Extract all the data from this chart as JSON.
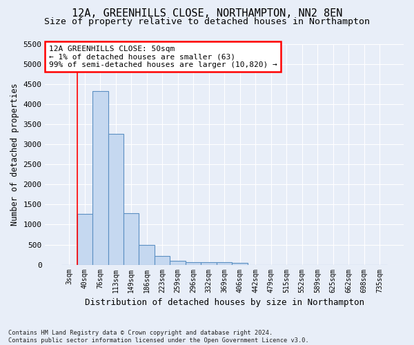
{
  "title_line1": "12A, GREENHILLS CLOSE, NORTHAMPTON, NN2 8EN",
  "title_line2": "Size of property relative to detached houses in Northampton",
  "xlabel": "Distribution of detached houses by size in Northampton",
  "ylabel": "Number of detached properties",
  "categories": [
    "3sqm",
    "40sqm",
    "76sqm",
    "113sqm",
    "149sqm",
    "186sqm",
    "223sqm",
    "259sqm",
    "296sqm",
    "332sqm",
    "369sqm",
    "406sqm",
    "442sqm",
    "479sqm",
    "515sqm",
    "552sqm",
    "589sqm",
    "625sqm",
    "662sqm",
    "698sqm",
    "735sqm"
  ],
  "bar_heights": [
    0,
    1270,
    4330,
    3260,
    1280,
    490,
    220,
    95,
    60,
    55,
    55,
    50,
    0,
    0,
    0,
    0,
    0,
    0,
    0,
    0,
    0
  ],
  "bar_color": "#c5d8f0",
  "bar_edge_color": "#5a8fc2",
  "ylim": [
    0,
    5500
  ],
  "yticks": [
    0,
    500,
    1000,
    1500,
    2000,
    2500,
    3000,
    3500,
    4000,
    4500,
    5000,
    5500
  ],
  "annotation_text_line1": "12A GREENHILLS CLOSE: 50sqm",
  "annotation_text_line2": "← 1% of detached houses are smaller (63)",
  "annotation_text_line3": "99% of semi-detached houses are larger (10,820) →",
  "red_line_x": 0.5,
  "footer_line1": "Contains HM Land Registry data © Crown copyright and database right 2024.",
  "footer_line2": "Contains public sector information licensed under the Open Government Licence v3.0.",
  "background_color": "#e8eef8",
  "grid_color": "#ffffff",
  "annotation_fontsize": 8,
  "title1_fontsize": 11,
  "title2_fontsize": 9.5
}
